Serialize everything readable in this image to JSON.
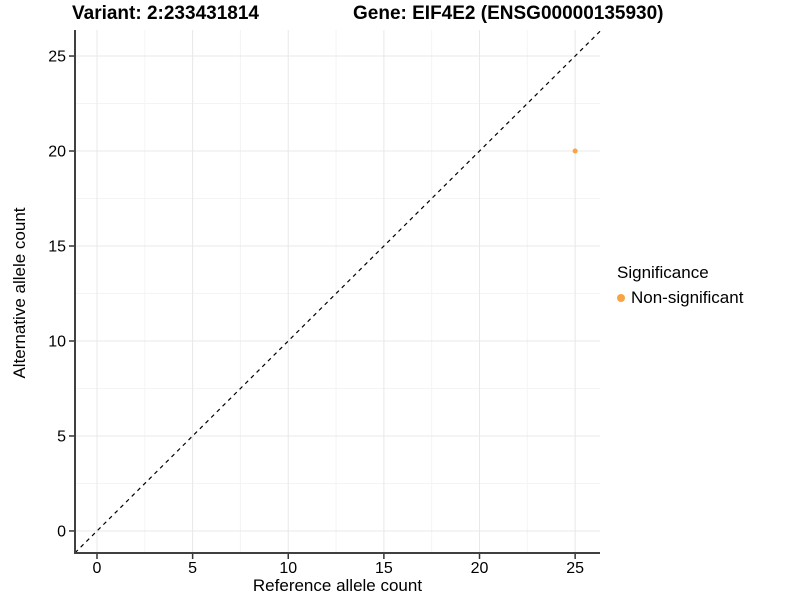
{
  "chart_data": {
    "type": "scatter",
    "title_left": "Variant: 2:233431814",
    "title_right": "Gene: EIF4E2 (ENSG00000135930)",
    "xlabel": "Reference allele count",
    "ylabel": "Alternative allele count",
    "xticks": [
      0,
      5,
      10,
      15,
      20,
      25
    ],
    "yticks": [
      0,
      5,
      10,
      15,
      20,
      25
    ],
    "xlim": [
      -1.15,
      26.3
    ],
    "ylim": [
      -1.16,
      26.37
    ],
    "minor_gridlines_x": [
      2.5,
      7.5,
      12.5,
      17.5,
      22.5
    ],
    "minor_gridlines_y": [
      2.5,
      7.5,
      12.5,
      17.5,
      22.5
    ],
    "grid": "major+minor",
    "identity_line": {
      "slope": 1,
      "intercept": 0,
      "style": "dashed",
      "color": "#000000"
    },
    "points": [
      {
        "x": 25,
        "y": 20,
        "significance": "Non-significant",
        "color": "#F8A443",
        "radius": 2.5
      }
    ],
    "legend": {
      "title": "Significance",
      "position": "right-middle",
      "entries": [
        {
          "label": "Non-significant",
          "color": "#F8A443"
        }
      ]
    }
  },
  "style_colors": {
    "grid_major": "#E8E8E8",
    "grid_minor": "#F4F4F4",
    "axis_line": "#404040",
    "tick_mark": "#333333",
    "text": "#000000",
    "background": "#FFFFFF"
  }
}
